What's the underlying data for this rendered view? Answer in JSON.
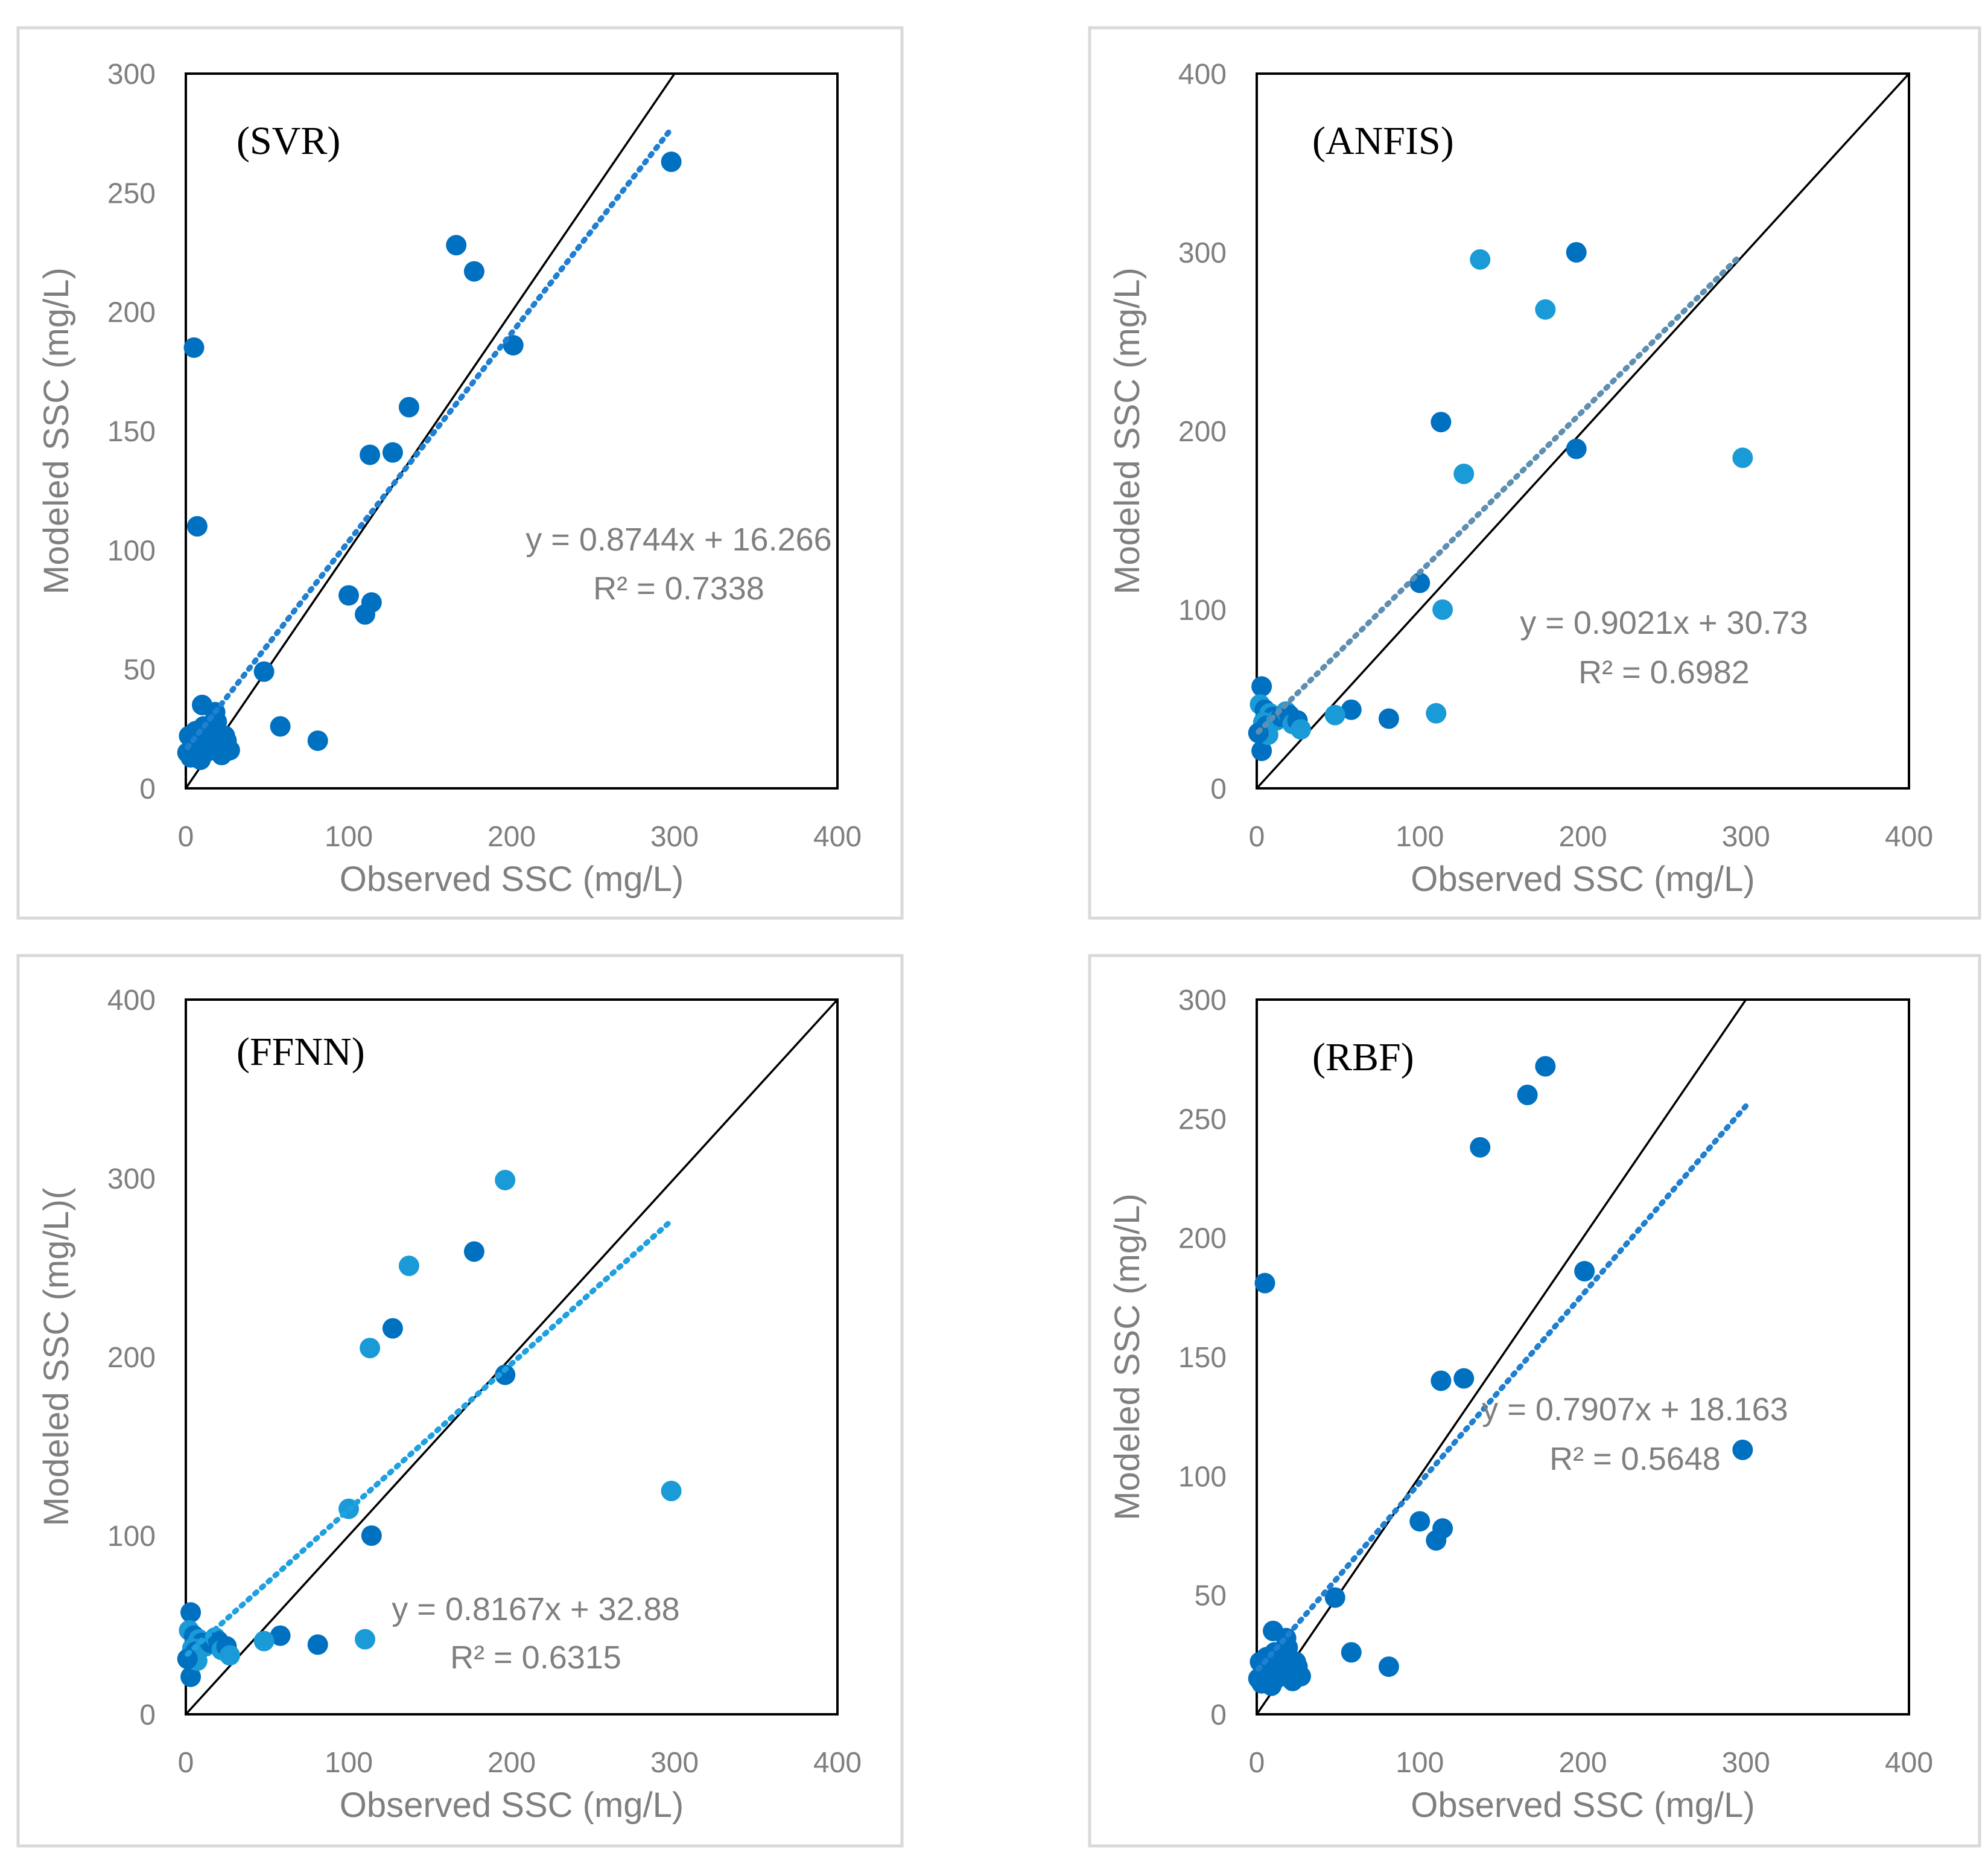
{
  "colors": {
    "frame": "#d9d9d9",
    "axis_box": "#000000",
    "tick_text": "#7f7f7f",
    "identity_line": "#000000",
    "point_dark": "#0070c0",
    "point_light": "#1a9bd7",
    "trend_svr": "#1f7fd0",
    "trend_anfis": "#5f8fb0",
    "trend_ffnn": "#1fa0e0",
    "trend_rbf": "#1f7fd0"
  },
  "chart_data": [
    {
      "type": "scatter",
      "panel_label": "(SVR)",
      "xlabel": "Observed SSC (mg/L)",
      "ylabel": "Modeled SSC (mg/L)",
      "xlim": [
        0,
        400
      ],
      "ylim": [
        0,
        300
      ],
      "x_ticks": [
        "0",
        "100",
        "200",
        "300",
        "400"
      ],
      "y_ticks": [
        "0",
        "50",
        "100",
        "150",
        "200",
        "250",
        "300"
      ],
      "equation": "y = 0.8744x + 16.266",
      "r2": "R² = 0.7338",
      "trendline": {
        "slope": 0.8744,
        "intercept": 16.266,
        "x_range": [
          1,
          298
        ]
      },
      "identity_line": {
        "x_range": [
          0,
          400
        ]
      },
      "point_color": "dark",
      "points": [
        [
          298,
          263
        ],
        [
          166,
          228
        ],
        [
          177,
          217
        ],
        [
          201,
          186
        ],
        [
          137,
          160
        ],
        [
          127,
          141
        ],
        [
          113,
          140
        ],
        [
          5,
          185
        ],
        [
          7,
          110
        ],
        [
          100,
          81
        ],
        [
          114,
          78
        ],
        [
          110,
          73
        ],
        [
          48,
          49
        ],
        [
          58,
          26
        ],
        [
          81,
          20
        ],
        [
          10,
          35
        ],
        [
          18,
          32
        ],
        [
          2,
          22
        ],
        [
          4,
          20
        ],
        [
          8,
          18
        ],
        [
          12,
          15
        ],
        [
          3,
          13
        ],
        [
          6,
          24
        ],
        [
          9,
          12
        ],
        [
          14,
          21
        ],
        [
          16,
          17
        ],
        [
          20,
          19
        ],
        [
          22,
          14
        ],
        [
          25,
          20
        ],
        [
          27,
          16
        ],
        [
          1,
          15
        ],
        [
          11,
          26
        ],
        [
          15,
          23
        ],
        [
          19,
          28
        ],
        [
          13,
          18
        ],
        [
          24,
          22
        ],
        [
          5,
          16
        ],
        [
          7,
          14
        ]
      ]
    },
    {
      "type": "scatter",
      "panel_label": "(ANFIS)",
      "xlabel": "Observed SSC (mg/L)",
      "ylabel": "Modeled SSC (mg/L)",
      "xlim": [
        0,
        400
      ],
      "ylim": [
        0,
        400
      ],
      "x_ticks": [
        "0",
        "100",
        "200",
        "300",
        "400"
      ],
      "y_ticks": [
        "0",
        "100",
        "200",
        "300",
        "400"
      ],
      "equation": "y = 0.9021x + 30.73",
      "r2": "R² = 0.6982",
      "trendline": {
        "slope": 0.9021,
        "intercept": 30.73,
        "x_range": [
          1,
          296
        ]
      },
      "identity_line": {
        "x_range": [
          0,
          400
        ]
      },
      "point_color": "mixed",
      "points": [
        [
          137,
          296
        ],
        [
          196,
          300
        ],
        [
          177,
          268
        ],
        [
          113,
          205
        ],
        [
          127,
          176
        ],
        [
          196,
          190
        ],
        [
          298,
          185
        ],
        [
          100,
          115
        ],
        [
          114,
          100
        ],
        [
          58,
          44
        ],
        [
          48,
          41
        ],
        [
          81,
          39
        ],
        [
          110,
          42
        ],
        [
          3,
          57
        ],
        [
          2,
          47
        ],
        [
          5,
          44
        ],
        [
          8,
          42
        ],
        [
          10,
          40
        ],
        [
          4,
          37
        ],
        [
          6,
          35
        ],
        [
          12,
          38
        ],
        [
          15,
          40
        ],
        [
          18,
          43
        ],
        [
          20,
          41
        ],
        [
          22,
          36
        ],
        [
          25,
          38
        ],
        [
          27,
          33
        ],
        [
          3,
          21
        ],
        [
          7,
          30
        ],
        [
          1,
          31
        ]
      ]
    },
    {
      "type": "scatter",
      "panel_label": "(FFNN)",
      "xlabel": "Observed SSC (mg/L)",
      "ylabel": "Modeled SSC (mg/L)(",
      "xlim": [
        0,
        400
      ],
      "ylim": [
        0,
        400
      ],
      "x_ticks": [
        "0",
        "100",
        "200",
        "300",
        "400"
      ],
      "y_ticks": [
        "0",
        "100",
        "200",
        "300",
        "400"
      ],
      "equation": "y = 0.8167x + 32.88",
      "r2": "R² = 0.6315",
      "trendline": {
        "slope": 0.8167,
        "intercept": 32.88,
        "x_range": [
          1,
          298
        ]
      },
      "identity_line": {
        "x_range": [
          0,
          400
        ]
      },
      "point_color": "mixed",
      "points": [
        [
          196,
          299
        ],
        [
          177,
          259
        ],
        [
          137,
          251
        ],
        [
          127,
          216
        ],
        [
          113,
          205
        ],
        [
          196,
          190
        ],
        [
          100,
          115
        ],
        [
          114,
          100
        ],
        [
          298,
          125
        ],
        [
          58,
          44
        ],
        [
          48,
          41
        ],
        [
          81,
          39
        ],
        [
          110,
          42
        ],
        [
          3,
          57
        ],
        [
          2,
          47
        ],
        [
          5,
          44
        ],
        [
          8,
          42
        ],
        [
          10,
          40
        ],
        [
          4,
          37
        ],
        [
          6,
          35
        ],
        [
          12,
          38
        ],
        [
          15,
          40
        ],
        [
          18,
          43
        ],
        [
          20,
          41
        ],
        [
          22,
          36
        ],
        [
          25,
          38
        ],
        [
          27,
          33
        ],
        [
          3,
          21
        ],
        [
          7,
          30
        ],
        [
          1,
          31
        ]
      ]
    },
    {
      "type": "scatter",
      "panel_label": "(RBF)",
      "xlabel": "Observed SSC (mg/L)",
      "ylabel": "Modeled SSC (mg/L)",
      "xlim": [
        0,
        400
      ],
      "ylim": [
        0,
        300
      ],
      "x_ticks": [
        "0",
        "100",
        "200",
        "300",
        "400"
      ],
      "y_ticks": [
        "0",
        "50",
        "100",
        "150",
        "200",
        "250",
        "300"
      ],
      "equation": "y = 0.7907x + 18.163",
      "r2": "R² = 0.5648",
      "trendline": {
        "slope": 0.7907,
        "intercept": 18.163,
        "x_range": [
          1,
          300
        ]
      },
      "identity_line": {
        "x_range": [
          0,
          400
        ]
      },
      "point_color": "dark",
      "points": [
        [
          177,
          272
        ],
        [
          166,
          260
        ],
        [
          137,
          238
        ],
        [
          5,
          181
        ],
        [
          201,
          186
        ],
        [
          127,
          141
        ],
        [
          113,
          140
        ],
        [
          298,
          111
        ],
        [
          100,
          81
        ],
        [
          114,
          78
        ],
        [
          110,
          73
        ],
        [
          48,
          49
        ],
        [
          58,
          26
        ],
        [
          81,
          20
        ],
        [
          10,
          35
        ],
        [
          18,
          32
        ],
        [
          2,
          22
        ],
        [
          4,
          20
        ],
        [
          8,
          18
        ],
        [
          12,
          15
        ],
        [
          3,
          13
        ],
        [
          6,
          24
        ],
        [
          9,
          12
        ],
        [
          14,
          21
        ],
        [
          16,
          17
        ],
        [
          20,
          19
        ],
        [
          22,
          14
        ],
        [
          25,
          20
        ],
        [
          27,
          16
        ],
        [
          1,
          15
        ],
        [
          11,
          26
        ],
        [
          15,
          23
        ],
        [
          19,
          28
        ],
        [
          13,
          18
        ],
        [
          24,
          22
        ],
        [
          5,
          16
        ],
        [
          7,
          14
        ]
      ]
    }
  ]
}
